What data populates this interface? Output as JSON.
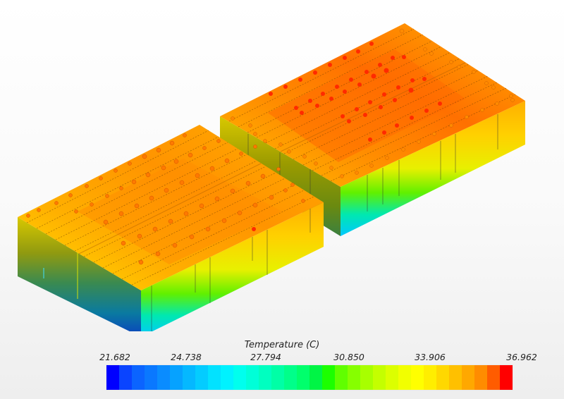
{
  "chart_data": {
    "type": "heatmap",
    "title": "Temperature (C)",
    "description": "3D thermal simulation contour plot of two battery-pack modules (isometric view) with colorbar legend",
    "colorbar": {
      "label": "Temperature (C)",
      "min": 21.682,
      "max": 36.962,
      "tick_labels": [
        "21.682",
        "24.738",
        "27.794",
        "30.850",
        "33.906",
        "36.962"
      ],
      "tick_values": [
        21.682,
        24.738,
        27.794,
        30.85,
        33.906,
        36.962
      ],
      "segment_count": 32,
      "colors": [
        "#0000ff",
        "#0a44ff",
        "#0b64ff",
        "#0a78ff",
        "#0a8cff",
        "#06a2ff",
        "#05b8ff",
        "#04ccff",
        "#02e2ff",
        "#00f2ff",
        "#00ffee",
        "#00ffd8",
        "#00ffc0",
        "#00ffa6",
        "#00ff8a",
        "#00ff6c",
        "#00f545",
        "#1cff00",
        "#60ff00",
        "#86ff00",
        "#a8ff00",
        "#c4ff00",
        "#dcff00",
        "#f2ff00",
        "#ffff00",
        "#ffee00",
        "#ffd800",
        "#ffc000",
        "#ffa800",
        "#ff8c00",
        "#ff5c00",
        "#ff0000"
      ],
      "legend_position": "bottom"
    },
    "modules": [
      {
        "name": "Module 1 (left)",
        "cell_columns": 13,
        "top_surface_range_C": [
          33.5,
          36.0
        ],
        "side_bottom_range_C": [
          21.7,
          27.0
        ],
        "hotspot_max_C": 36.5
      },
      {
        "name": "Module 2 (right)",
        "cell_columns": 13,
        "top_surface_range_C": [
          34.0,
          36.5
        ],
        "side_bottom_range_C": [
          24.0,
          28.0
        ],
        "hotspot_max_C": 36.962
      }
    ]
  },
  "legend": {
    "title": "Temperature (C)",
    "ticks": [
      "21.682",
      "24.738",
      "27.794",
      "30.850",
      "33.906",
      "36.962"
    ]
  }
}
